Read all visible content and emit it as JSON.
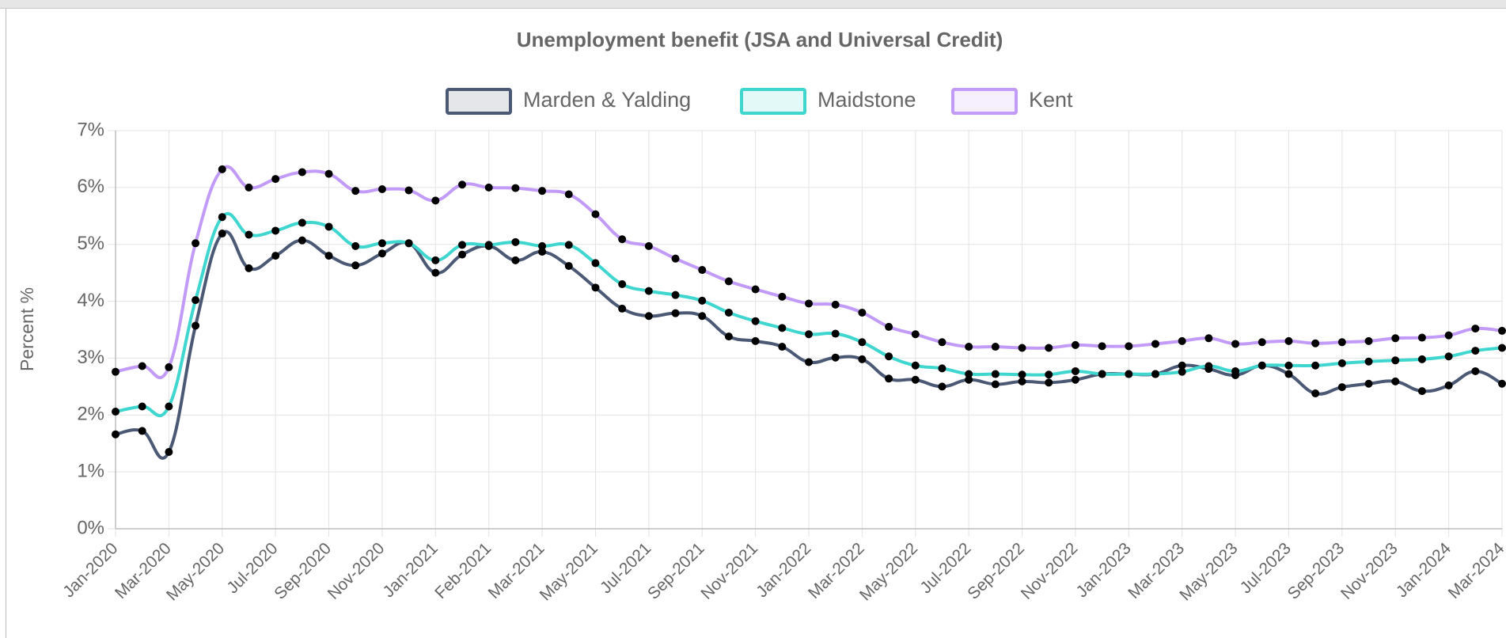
{
  "chart_data": {
    "type": "line",
    "title": "Unemployment benefit (JSA and Universal Credit)",
    "y_label": "Percent %",
    "categories": [
      "Jan-2020",
      null,
      "Mar-2020",
      null,
      "May-2020",
      null,
      "Jul-2020",
      null,
      "Sep-2020",
      null,
      "Nov-2020",
      null,
      "Jan-2021",
      null,
      "Feb-2021",
      null,
      "Mar-2021",
      null,
      "May-2021",
      null,
      "Jul-2021",
      null,
      "Sep-2021",
      null,
      "Nov-2021",
      null,
      "Jan-2022",
      null,
      "Mar-2022",
      null,
      "May-2022",
      null,
      "Jul-2022",
      null,
      "Sep-2022",
      null,
      "Nov-2022",
      null,
      "Jan-2023",
      null,
      "Mar-2023",
      null,
      "May-2023",
      null,
      "Jul-2023",
      null,
      "Sep-2023",
      null,
      "Nov-2023",
      null,
      "Jan-2024",
      null,
      "Mar-2024"
    ],
    "series": [
      {
        "name": "Marden & Yalding",
        "color": "#4b5975",
        "values": [
          1.66,
          1.72,
          1.35,
          3.57,
          5.19,
          4.58,
          4.8,
          5.07,
          4.8,
          4.63,
          4.84,
          5.02,
          4.5,
          4.82,
          4.97,
          4.72,
          4.87,
          4.62,
          4.24,
          3.87,
          3.74,
          3.79,
          3.74,
          3.38,
          3.3,
          3.2,
          2.93,
          3.01,
          2.98,
          2.64,
          2.62,
          2.5,
          2.62,
          2.54,
          2.59,
          2.57,
          2.62,
          2.72,
          2.72,
          2.72,
          2.87,
          2.81,
          2.7,
          2.87,
          2.72,
          2.38,
          2.49,
          2.55,
          2.59,
          2.42,
          2.52,
          2.77,
          2.55
        ]
      },
      {
        "name": "Maidstone",
        "color": "#3fd6cf",
        "values": [
          2.06,
          2.15,
          2.15,
          4.02,
          5.48,
          5.17,
          5.24,
          5.38,
          5.31,
          4.97,
          5.02,
          5.02,
          4.72,
          4.99,
          4.99,
          5.04,
          4.97,
          4.99,
          4.67,
          4.3,
          4.18,
          4.11,
          4.01,
          3.8,
          3.65,
          3.53,
          3.42,
          3.43,
          3.28,
          3.03,
          2.87,
          2.82,
          2.72,
          2.72,
          2.71,
          2.71,
          2.77,
          2.72,
          2.72,
          2.72,
          2.76,
          2.86,
          2.77,
          2.87,
          2.87,
          2.87,
          2.91,
          2.94,
          2.96,
          2.98,
          3.03,
          3.13,
          3.18
        ]
      },
      {
        "name": "Kent",
        "color": "#c29bf8",
        "values": [
          2.76,
          2.86,
          2.84,
          5.02,
          6.32,
          6.0,
          6.15,
          6.27,
          6.24,
          5.94,
          5.97,
          5.95,
          5.77,
          6.05,
          6.0,
          5.99,
          5.94,
          5.88,
          5.53,
          5.09,
          4.97,
          4.75,
          4.55,
          4.35,
          4.21,
          4.08,
          3.96,
          3.94,
          3.8,
          3.55,
          3.42,
          3.28,
          3.2,
          3.2,
          3.18,
          3.18,
          3.23,
          3.21,
          3.21,
          3.25,
          3.3,
          3.35,
          3.25,
          3.28,
          3.3,
          3.26,
          3.28,
          3.3,
          3.35,
          3.36,
          3.4,
          3.52,
          3.48
        ]
      }
    ],
    "ylim": [
      0,
      7
    ],
    "yticks": [
      {
        "value": 0,
        "label": "0%"
      },
      {
        "value": 1,
        "label": "1%"
      },
      {
        "value": 2,
        "label": "2%"
      },
      {
        "value": 3,
        "label": "3%"
      },
      {
        "value": 4,
        "label": "4%"
      },
      {
        "value": 5,
        "label": "5%"
      },
      {
        "value": 6,
        "label": "6%"
      },
      {
        "value": 7,
        "label": "7%"
      }
    ],
    "grid": true,
    "legend": "top",
    "point_color": "#000000"
  }
}
